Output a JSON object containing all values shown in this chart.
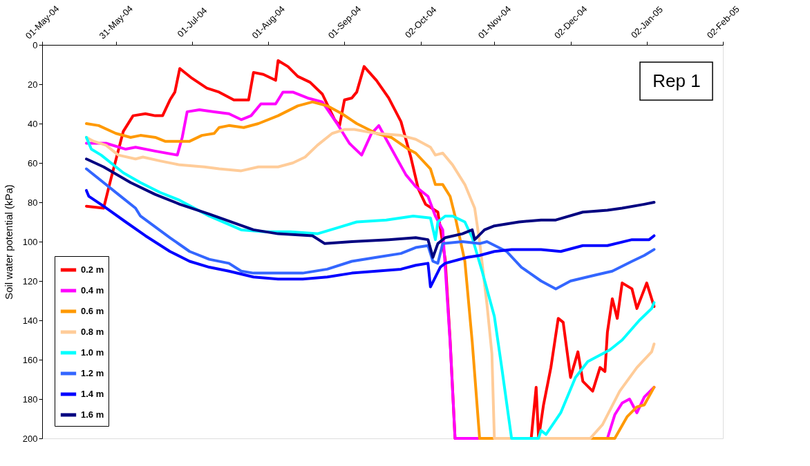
{
  "chart_data": {
    "type": "line",
    "ylabel": "Soil water potential (kPa)",
    "annotations": [
      "Rep 1"
    ],
    "xlim": [
      "2004-05-01",
      "2005-02-02"
    ],
    "xticks": [
      {
        "value": "2004-05-01",
        "label": "01-May-04"
      },
      {
        "value": "2004-05-31",
        "label": "31-May-04"
      },
      {
        "value": "2004-07-01",
        "label": "01-Jul-04"
      },
      {
        "value": "2004-08-01",
        "label": "01-Aug-04"
      },
      {
        "value": "2004-09-01",
        "label": "01-Sep-04"
      },
      {
        "value": "2004-10-02",
        "label": "02-Oct-04"
      },
      {
        "value": "2004-11-01",
        "label": "01-Nov-04"
      },
      {
        "value": "2004-12-02",
        "label": "02-Dec-04"
      },
      {
        "value": "2005-01-02",
        "label": "02-Jan-05"
      },
      {
        "value": "2005-02-02",
        "label": "02-Feb-05"
      }
    ],
    "ylim": [
      200,
      0
    ],
    "yticks": [
      0,
      20,
      40,
      60,
      80,
      100,
      120,
      140,
      160,
      180,
      200
    ],
    "grid": false,
    "legend": "bottom left",
    "line_style": "solid",
    "series": [
      {
        "name": "0.2 m",
        "color": "#ff0000",
        "x": [
          "2004-05-19",
          "2004-05-26",
          "2004-05-29",
          "2004-06-03",
          "2004-06-07",
          "2004-06-12",
          "2004-06-16",
          "2004-06-19",
          "2004-06-22",
          "2004-06-24",
          "2004-06-26",
          "2004-07-01",
          "2004-07-07",
          "2004-07-12",
          "2004-07-18",
          "2004-07-24",
          "2004-07-26",
          "2004-07-30",
          "2004-08-04",
          "2004-08-05",
          "2004-08-09",
          "2004-08-13",
          "2004-08-18",
          "2004-08-23",
          "2004-08-28",
          "2004-08-30",
          "2004-09-01",
          "2004-09-04",
          "2004-09-06",
          "2004-09-09",
          "2004-09-14",
          "2004-09-19",
          "2004-09-24",
          "2004-09-28",
          "2004-10-01",
          "2004-10-04",
          "2004-10-09",
          "2004-10-12",
          "2004-10-14",
          "2004-10-16",
          "2004-11-16",
          "2004-11-18",
          "2004-11-19",
          "2004-11-21",
          "2004-11-24",
          "2004-11-27",
          "2004-11-29",
          "2004-12-02",
          "2004-12-05",
          "2004-12-07",
          "2004-12-11",
          "2004-12-14",
          "2004-12-16",
          "2004-12-17",
          "2004-12-19",
          "2004-12-21",
          "2004-12-23",
          "2004-12-27",
          "2004-12-29",
          "2005-01-02",
          "2005-01-05"
        ],
        "values": [
          82,
          83,
          68,
          44,
          36,
          35,
          36,
          36,
          28,
          24,
          12,
          17,
          22,
          24,
          28,
          28,
          14,
          15,
          18,
          8,
          11,
          16,
          19,
          25,
          38,
          41,
          28,
          27,
          24,
          11,
          18,
          27,
          39,
          57,
          73,
          81,
          85,
          109,
          150,
          200,
          200,
          174,
          200,
          183,
          164,
          139,
          141,
          169,
          156,
          171,
          176,
          164,
          166,
          146,
          129,
          139,
          121,
          124,
          134,
          121,
          133
        ]
      },
      {
        "name": "0.4 m",
        "color": "#ff00ff",
        "x": [
          "2004-05-19",
          "2004-05-27",
          "2004-06-04",
          "2004-06-08",
          "2004-06-16",
          "2004-06-25",
          "2004-06-27",
          "2004-06-29",
          "2004-07-04",
          "2004-07-10",
          "2004-07-16",
          "2004-07-21",
          "2004-07-25",
          "2004-07-29",
          "2004-08-04",
          "2004-08-07",
          "2004-08-11",
          "2004-08-17",
          "2004-08-23",
          "2004-08-29",
          "2004-09-03",
          "2004-09-08",
          "2004-09-12",
          "2004-09-15",
          "2004-09-18",
          "2004-09-22",
          "2004-09-26",
          "2004-09-30",
          "2004-10-05",
          "2004-10-08",
          "2004-10-11",
          "2004-10-14",
          "2004-10-16",
          "2004-12-17",
          "2004-12-20",
          "2004-12-23",
          "2004-12-26",
          "2004-12-29",
          "2005-01-01",
          "2005-01-05"
        ],
        "values": [
          50,
          50,
          53,
          52,
          54,
          56,
          47,
          34,
          33,
          34,
          35,
          38,
          36,
          30,
          30,
          24,
          24,
          27,
          29,
          40,
          50,
          56,
          45,
          41,
          48,
          57,
          66,
          72,
          77,
          87,
          94,
          151,
          200,
          200,
          188,
          182,
          180,
          187,
          179,
          174
        ]
      },
      {
        "name": "0.6 m",
        "color": "#ff9900",
        "x": [
          "2004-05-19",
          "2004-05-24",
          "2004-05-31",
          "2004-06-06",
          "2004-06-10",
          "2004-06-16",
          "2004-06-20",
          "2004-06-26",
          "2004-06-30",
          "2004-07-05",
          "2004-07-10",
          "2004-07-12",
          "2004-07-16",
          "2004-07-22",
          "2004-07-28",
          "2004-08-05",
          "2004-08-13",
          "2004-08-19",
          "2004-08-25",
          "2004-08-31",
          "2004-09-06",
          "2004-09-14",
          "2004-09-20",
          "2004-09-27",
          "2004-09-30",
          "2004-10-06",
          "2004-10-08",
          "2004-10-11",
          "2004-10-14",
          "2004-10-16",
          "2004-10-20",
          "2004-10-23",
          "2004-10-26",
          "2004-12-20",
          "2004-12-25",
          "2004-12-29",
          "2005-01-01",
          "2005-01-05"
        ],
        "values": [
          40,
          41,
          45,
          47,
          46,
          47,
          49,
          49,
          49,
          46,
          45,
          42,
          41,
          42,
          40,
          36,
          31,
          29,
          31,
          35,
          40,
          45,
          47,
          53,
          55,
          63,
          71,
          71,
          77,
          87,
          110,
          151,
          200,
          200,
          189,
          184,
          183,
          174
        ]
      },
      {
        "name": "0.8 m",
        "color": "#ffcc99",
        "x": [
          "2004-05-19",
          "2004-05-22",
          "2004-05-27",
          "2004-06-01",
          "2004-06-08",
          "2004-06-11",
          "2004-06-18",
          "2004-06-26",
          "2004-07-06",
          "2004-07-12",
          "2004-07-21",
          "2004-07-28",
          "2004-08-05",
          "2004-08-11",
          "2004-08-16",
          "2004-08-21",
          "2004-08-27",
          "2004-09-01",
          "2004-09-05",
          "2004-09-14",
          "2004-09-24",
          "2004-09-30",
          "2004-10-06",
          "2004-10-08",
          "2004-10-11",
          "2004-10-15",
          "2004-10-20",
          "2004-10-24",
          "2004-10-26",
          "2004-10-29",
          "2004-10-31",
          "2004-11-01",
          "2004-12-10",
          "2004-12-15",
          "2004-12-22",
          "2004-12-29",
          "2005-01-04",
          "2005-01-05"
        ],
        "values": [
          47,
          49,
          51,
          56,
          58,
          57,
          59,
          61,
          62,
          63,
          64,
          62,
          62,
          60,
          57,
          51,
          45,
          43,
          43,
          45,
          46,
          48,
          52,
          56,
          55,
          61,
          71,
          83,
          100,
          132,
          157,
          200,
          200,
          193,
          176,
          164,
          156,
          152
        ]
      },
      {
        "name": "1.0 m",
        "color": "#00ffff",
        "x": [
          "2004-05-19",
          "2004-05-21",
          "2004-05-25",
          "2004-05-29",
          "2004-06-03",
          "2004-06-10",
          "2004-06-18",
          "2004-06-26",
          "2004-07-08",
          "2004-07-21",
          "2004-07-31",
          "2004-08-10",
          "2004-08-21",
          "2004-08-29",
          "2004-09-06",
          "2004-09-18",
          "2004-09-29",
          "2004-10-06",
          "2004-10-08",
          "2004-10-09",
          "2004-10-12",
          "2004-10-15",
          "2004-10-20",
          "2004-10-23",
          "2004-10-27",
          "2004-11-01",
          "2004-11-04",
          "2004-11-08",
          "2004-11-19",
          "2004-11-20",
          "2004-11-22",
          "2004-11-28",
          "2004-12-04",
          "2004-12-09",
          "2004-12-18",
          "2004-12-23",
          "2004-12-30",
          "2005-01-04",
          "2005-01-05"
        ],
        "values": [
          47,
          53,
          56,
          60,
          65,
          70,
          75,
          79,
          87,
          94,
          95,
          95,
          96,
          93,
          90,
          89,
          87,
          88,
          99,
          90,
          87,
          87,
          90,
          98,
          115,
          138,
          164,
          200,
          200,
          196,
          198,
          187,
          169,
          161,
          155,
          150,
          140,
          134,
          131
        ]
      },
      {
        "name": "1.2 m",
        "color": "#3366ff",
        "x": [
          "2004-05-19",
          "2004-05-21",
          "2004-05-26",
          "2004-06-01",
          "2004-06-08",
          "2004-06-10",
          "2004-06-22",
          "2004-06-30",
          "2004-07-08",
          "2004-07-16",
          "2004-07-21",
          "2004-07-26",
          "2004-08-05",
          "2004-08-15",
          "2004-08-25",
          "2004-09-04",
          "2004-09-14",
          "2004-09-24",
          "2004-09-30",
          "2004-10-05",
          "2004-10-07",
          "2004-10-09",
          "2004-10-11",
          "2004-10-19",
          "2004-10-26",
          "2004-10-29",
          "2004-11-06",
          "2004-11-12",
          "2004-11-20",
          "2004-11-26",
          "2004-12-02",
          "2004-12-12",
          "2004-12-19",
          "2004-12-27",
          "2005-01-01",
          "2005-01-05"
        ],
        "values": [
          63,
          65,
          70,
          76,
          83,
          87,
          98,
          105,
          109,
          111,
          115,
          116,
          116,
          116,
          114,
          110,
          108,
          106,
          103,
          102,
          110,
          111,
          101,
          100,
          101,
          100,
          105,
          113,
          120,
          124,
          120,
          117,
          115,
          110,
          107,
          104
        ]
      },
      {
        "name": "1.4 m",
        "color": "#0000ff",
        "x": [
          "2004-05-19",
          "2004-05-20",
          "2004-05-26",
          "2004-06-04",
          "2004-06-12",
          "2004-06-22",
          "2004-06-30",
          "2004-07-08",
          "2004-07-16",
          "2004-07-26",
          "2004-08-05",
          "2004-08-15",
          "2004-08-25",
          "2004-09-04",
          "2004-09-14",
          "2004-09-24",
          "2004-09-30",
          "2004-10-05",
          "2004-10-06",
          "2004-10-08",
          "2004-10-10",
          "2004-10-12",
          "2004-10-21",
          "2004-10-26",
          "2004-11-01",
          "2004-11-08",
          "2004-11-20",
          "2004-11-28",
          "2004-12-07",
          "2004-12-17",
          "2004-12-27",
          "2005-01-03",
          "2005-01-05"
        ],
        "values": [
          74,
          77,
          82,
          90,
          97,
          105,
          110,
          113,
          115,
          118,
          119,
          119,
          118,
          116,
          115,
          114,
          112,
          111,
          123,
          118,
          113,
          111,
          108,
          107,
          105,
          104,
          104,
          105,
          102,
          102,
          99,
          99,
          97
        ]
      },
      {
        "name": "1.6 m",
        "color": "#000080",
        "x": [
          "2004-05-19",
          "2004-05-26",
          "2004-06-06",
          "2004-06-16",
          "2004-06-26",
          "2004-07-08",
          "2004-07-26",
          "2004-08-05",
          "2004-08-19",
          "2004-08-24",
          "2004-09-04",
          "2004-09-19",
          "2004-09-30",
          "2004-10-05",
          "2004-10-07",
          "2004-10-09",
          "2004-10-12",
          "2004-10-19",
          "2004-10-23",
          "2004-10-24",
          "2004-10-28",
          "2004-11-01",
          "2004-11-11",
          "2004-11-20",
          "2004-11-26",
          "2004-12-07",
          "2004-12-17",
          "2004-12-23",
          "2005-01-01",
          "2005-01-05"
        ],
        "values": [
          58,
          62,
          70,
          76,
          81,
          86,
          94,
          96,
          97,
          101,
          100,
          99,
          98,
          99,
          108,
          101,
          98,
          96,
          94,
          99,
          94,
          92,
          90,
          89,
          89,
          85,
          84,
          83,
          81,
          80
        ]
      }
    ]
  }
}
